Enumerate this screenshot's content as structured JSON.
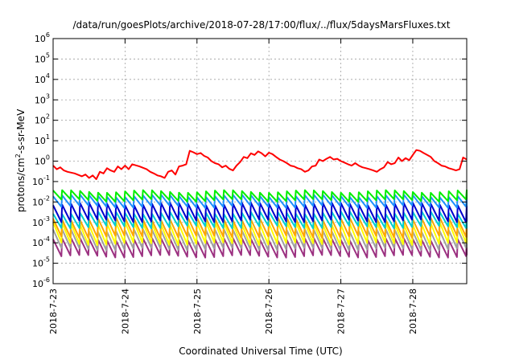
{
  "chart_data": {
    "type": "line",
    "title": "/data/run/goesPlots/archive/2018-07-28/17:00/flux/../flux/5daysMarsFluxes.txt",
    "xlabel": "Coordinated Universal Time (UTC)",
    "ylabel": "protons/cm2-s-sr-MeV",
    "ylabel_parts": {
      "pre": "protons/cm",
      "sup": "2",
      "post": "-s-sr-MeV"
    },
    "yscale": "log",
    "ylim": [
      1e-06,
      1000000.0
    ],
    "y_ticks": [
      {
        "base": "10",
        "exp": "6",
        "value": 1000000.0
      },
      {
        "base": "10",
        "exp": "5",
        "value": 100000.0
      },
      {
        "base": "10",
        "exp": "4",
        "value": 10000.0
      },
      {
        "base": "10",
        "exp": "3",
        "value": 1000.0
      },
      {
        "base": "10",
        "exp": "2",
        "value": 100.0
      },
      {
        "base": "10",
        "exp": "1",
        "value": 10.0
      },
      {
        "base": "10",
        "exp": "0",
        "value": 1.0
      },
      {
        "base": "10",
        "exp": "-1",
        "value": 0.1
      },
      {
        "base": "10",
        "exp": "-2",
        "value": 0.01
      },
      {
        "base": "10",
        "exp": "-3",
        "value": 0.001
      },
      {
        "base": "10",
        "exp": "-4",
        "value": 0.0001
      },
      {
        "base": "10",
        "exp": "-5",
        "value": 1e-05
      },
      {
        "base": "10",
        "exp": "-6",
        "value": 1e-06
      }
    ],
    "x_ticks": [
      "2018-7-23",
      "2018-7-24",
      "2018-7-25",
      "2018-7-26",
      "2018-7-27",
      "2018-7-28"
    ],
    "xlim_days": [
      0,
      5.75
    ],
    "grid": true,
    "series": [
      {
        "color": "#ff0000",
        "x": [
          0.0,
          0.05,
          0.1,
          0.15,
          0.2,
          0.3,
          0.4,
          0.45,
          0.5,
          0.55,
          0.6,
          0.65,
          0.7,
          0.75,
          0.8,
          0.85,
          0.9,
          0.95,
          1.0,
          1.05,
          1.1,
          1.2,
          1.3,
          1.35,
          1.4,
          1.45,
          1.5,
          1.55,
          1.6,
          1.65,
          1.7,
          1.75,
          1.8,
          1.85,
          1.9,
          1.95,
          2.0,
          2.05,
          2.1,
          2.15,
          2.2,
          2.25,
          2.3,
          2.35,
          2.4,
          2.45,
          2.5,
          2.55,
          2.6,
          2.65,
          2.7,
          2.75,
          2.8,
          2.85,
          2.9,
          2.95,
          3.0,
          3.05,
          3.1,
          3.15,
          3.2,
          3.25,
          3.3,
          3.35,
          3.4,
          3.45,
          3.5,
          3.55,
          3.6,
          3.65,
          3.7,
          3.75,
          3.8,
          3.85,
          3.9,
          3.95,
          4.0,
          4.05,
          4.1,
          4.15,
          4.2,
          4.25,
          4.3,
          4.35,
          4.4,
          4.45,
          4.5,
          4.55,
          4.6,
          4.65,
          4.7,
          4.75,
          4.8,
          4.85,
          4.9,
          4.95,
          5.0,
          5.05,
          5.1,
          5.15,
          5.2,
          5.25,
          5.3,
          5.35,
          5.4,
          5.45,
          5.5,
          5.55,
          5.6,
          5.65,
          5.7,
          5.75
        ],
        "y": [
          0.6,
          0.4,
          0.5,
          0.35,
          0.3,
          0.25,
          0.18,
          0.22,
          0.15,
          0.2,
          0.13,
          0.3,
          0.25,
          0.45,
          0.35,
          0.3,
          0.55,
          0.4,
          0.6,
          0.4,
          0.7,
          0.55,
          0.4,
          0.3,
          0.25,
          0.2,
          0.18,
          0.15,
          0.3,
          0.35,
          0.22,
          0.55,
          0.6,
          0.7,
          3.2,
          2.7,
          2.2,
          2.5,
          1.8,
          1.5,
          1.0,
          0.8,
          0.7,
          0.5,
          0.6,
          0.42,
          0.35,
          0.6,
          0.9,
          1.6,
          1.4,
          2.4,
          2.0,
          3.0,
          2.4,
          1.7,
          2.6,
          2.2,
          1.6,
          1.2,
          1.0,
          0.8,
          0.6,
          0.55,
          0.45,
          0.4,
          0.3,
          0.35,
          0.55,
          0.6,
          1.2,
          1.0,
          1.3,
          1.6,
          1.2,
          1.3,
          1.0,
          0.85,
          0.7,
          0.6,
          0.8,
          0.6,
          0.5,
          0.45,
          0.4,
          0.35,
          0.3,
          0.4,
          0.5,
          0.9,
          0.7,
          0.8,
          1.5,
          1.0,
          1.4,
          1.1,
          2.0,
          3.5,
          3.2,
          2.5,
          2.0,
          1.6,
          1.0,
          0.8,
          0.6,
          0.55,
          0.45,
          0.4,
          0.35,
          0.4,
          1.5,
          1.2
        ]
      }
    ],
    "periodic_series": [
      {
        "color": "#00ee00",
        "top": 0.033,
        "bottom": 0.012
      },
      {
        "color": "#1e90ff",
        "top": 0.02,
        "bottom": 0.006
      },
      {
        "color": "#0000cd",
        "top": 0.008,
        "bottom": 0.0012
      },
      {
        "color": "#00ced1",
        "top": 0.003,
        "bottom": 0.0006
      },
      {
        "color": "#ffa500",
        "top": 0.0015,
        "bottom": 0.0002
      },
      {
        "color": "#ffff00",
        "top": 0.0009,
        "bottom": 9e-05
      },
      {
        "color": "#a0a0a0",
        "top": 0.0004,
        "bottom": 5e-05
      },
      {
        "color": "#9b3080",
        "top": 0.00015,
        "bottom": 2.2e-05
      }
    ]
  }
}
